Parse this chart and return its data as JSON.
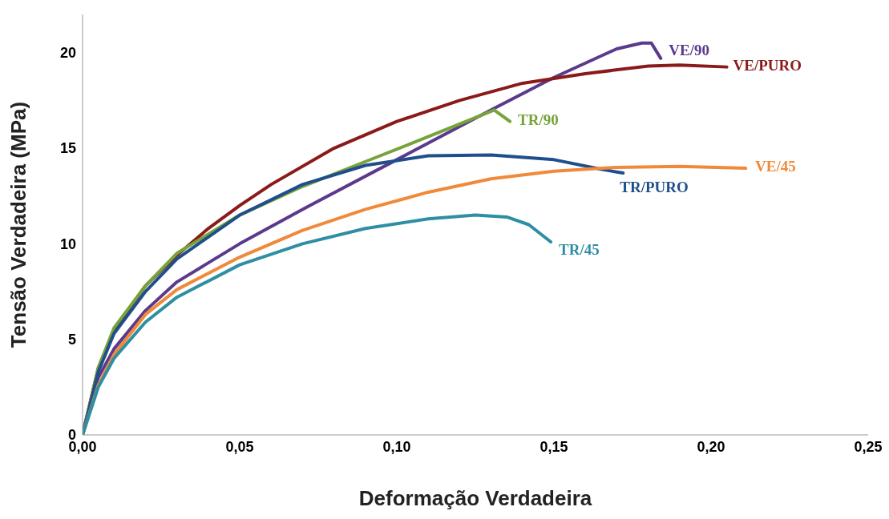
{
  "chart_data": {
    "type": "line",
    "xlabel": "Deformação Verdadeira",
    "ylabel": "Tensão Verdadeira (MPa)",
    "xlim": [
      0,
      0.25
    ],
    "ylim": [
      0,
      22
    ],
    "xticks": [
      {
        "value": 0,
        "label": "0,00"
      },
      {
        "value": 0.05,
        "label": "0,05"
      },
      {
        "value": 0.1,
        "label": "0,10"
      },
      {
        "value": 0.15,
        "label": "0,15"
      },
      {
        "value": 0.2,
        "label": "0,20"
      },
      {
        "value": 0.25,
        "label": "0,25"
      }
    ],
    "yticks": [
      0,
      5,
      10,
      15,
      20
    ],
    "grid": false,
    "legend": false,
    "marker": "none",
    "line_style": "solid",
    "series": [
      {
        "name": "VE/90",
        "color": "#5b3a8c",
        "x": [
          0,
          0.005,
          0.01,
          0.02,
          0.03,
          0.05,
          0.07,
          0.1,
          0.13,
          0.15,
          0.17,
          0.178,
          0.181,
          0.184
        ],
        "values": [
          0,
          3,
          4.5,
          6.5,
          8,
          10,
          11.8,
          14.4,
          17,
          18.7,
          20.2,
          20.5,
          20.5,
          19.7
        ]
      },
      {
        "name": "VE/PURO",
        "color": "#8b1a1a",
        "x": [
          0,
          0.005,
          0.01,
          0.02,
          0.03,
          0.04,
          0.05,
          0.06,
          0.08,
          0.1,
          0.12,
          0.14,
          0.16,
          0.18,
          0.19,
          0.205
        ],
        "values": [
          0,
          3.5,
          5.5,
          7.8,
          9.4,
          10.8,
          12,
          13.1,
          15,
          16.4,
          17.5,
          18.4,
          18.9,
          19.3,
          19.35,
          19.25
        ]
      },
      {
        "name": "TR/90",
        "color": "#77a33a",
        "x": [
          0,
          0.005,
          0.01,
          0.02,
          0.03,
          0.04,
          0.05,
          0.07,
          0.09,
          0.11,
          0.131,
          0.136
        ],
        "values": [
          0,
          3.5,
          5.6,
          7.8,
          9.5,
          10.5,
          11.5,
          13,
          14.3,
          15.6,
          17,
          16.4
        ]
      },
      {
        "name": "TR/PURO",
        "color": "#1f4e8c",
        "x": [
          0,
          0.005,
          0.01,
          0.02,
          0.03,
          0.05,
          0.07,
          0.09,
          0.11,
          0.13,
          0.15,
          0.165,
          0.172
        ],
        "values": [
          0,
          3.3,
          5.3,
          7.5,
          9.2,
          11.5,
          13.1,
          14.1,
          14.6,
          14.65,
          14.4,
          13.9,
          13.7
        ]
      },
      {
        "name": "VE/45",
        "color": "#f08a3a",
        "x": [
          0,
          0.005,
          0.01,
          0.02,
          0.03,
          0.05,
          0.07,
          0.09,
          0.11,
          0.13,
          0.15,
          0.17,
          0.19,
          0.211
        ],
        "values": [
          0,
          2.6,
          4.2,
          6.3,
          7.6,
          9.3,
          10.7,
          11.8,
          12.7,
          13.4,
          13.8,
          14,
          14.05,
          13.95
        ]
      },
      {
        "name": "TR/45",
        "color": "#2e8ea3",
        "x": [
          0,
          0.005,
          0.01,
          0.02,
          0.03,
          0.05,
          0.07,
          0.09,
          0.11,
          0.125,
          0.135,
          0.142,
          0.149
        ],
        "values": [
          0,
          2.5,
          4,
          5.9,
          7.2,
          8.9,
          10,
          10.8,
          11.3,
          11.5,
          11.4,
          11,
          10.1
        ]
      }
    ]
  }
}
